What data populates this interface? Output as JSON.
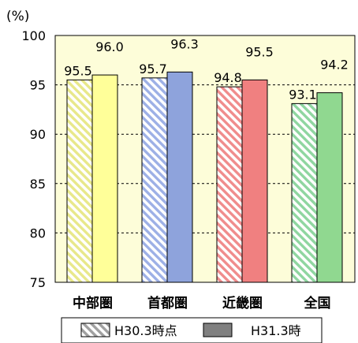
{
  "chart_data": {
    "type": "bar",
    "unit_label": "(%)",
    "categories": [
      "中部圏",
      "首都圏",
      "近畿圏",
      "全国"
    ],
    "ylim": [
      75,
      100
    ],
    "yticks": [
      75,
      80,
      85,
      90,
      95,
      100
    ],
    "grid": true,
    "legend_position": "bottom",
    "series": [
      {
        "name": "H30.3時点",
        "pattern": "hatched",
        "values": [
          95.5,
          95.7,
          94.8,
          93.1
        ],
        "value_labels": [
          "95.5",
          "95.7",
          "94.8",
          "93.1"
        ],
        "colors": [
          "#e8e88a",
          "#9db0e6",
          "#f08c8c",
          "#8fd6a0"
        ]
      },
      {
        "name": "H31.3時",
        "pattern": "solid",
        "values": [
          96.0,
          96.3,
          95.5,
          94.2
        ],
        "value_labels": [
          "96.0",
          "96.3",
          "95.5",
          "94.2"
        ],
        "colors": [
          "#ffff99",
          "#8ea3dc",
          "#f08080",
          "#90d890"
        ]
      }
    ],
    "colors": {
      "plot_background": "#fdfdd9",
      "legend_hatched": "#a0a0a0",
      "legend_solid": "#808080"
    }
  }
}
